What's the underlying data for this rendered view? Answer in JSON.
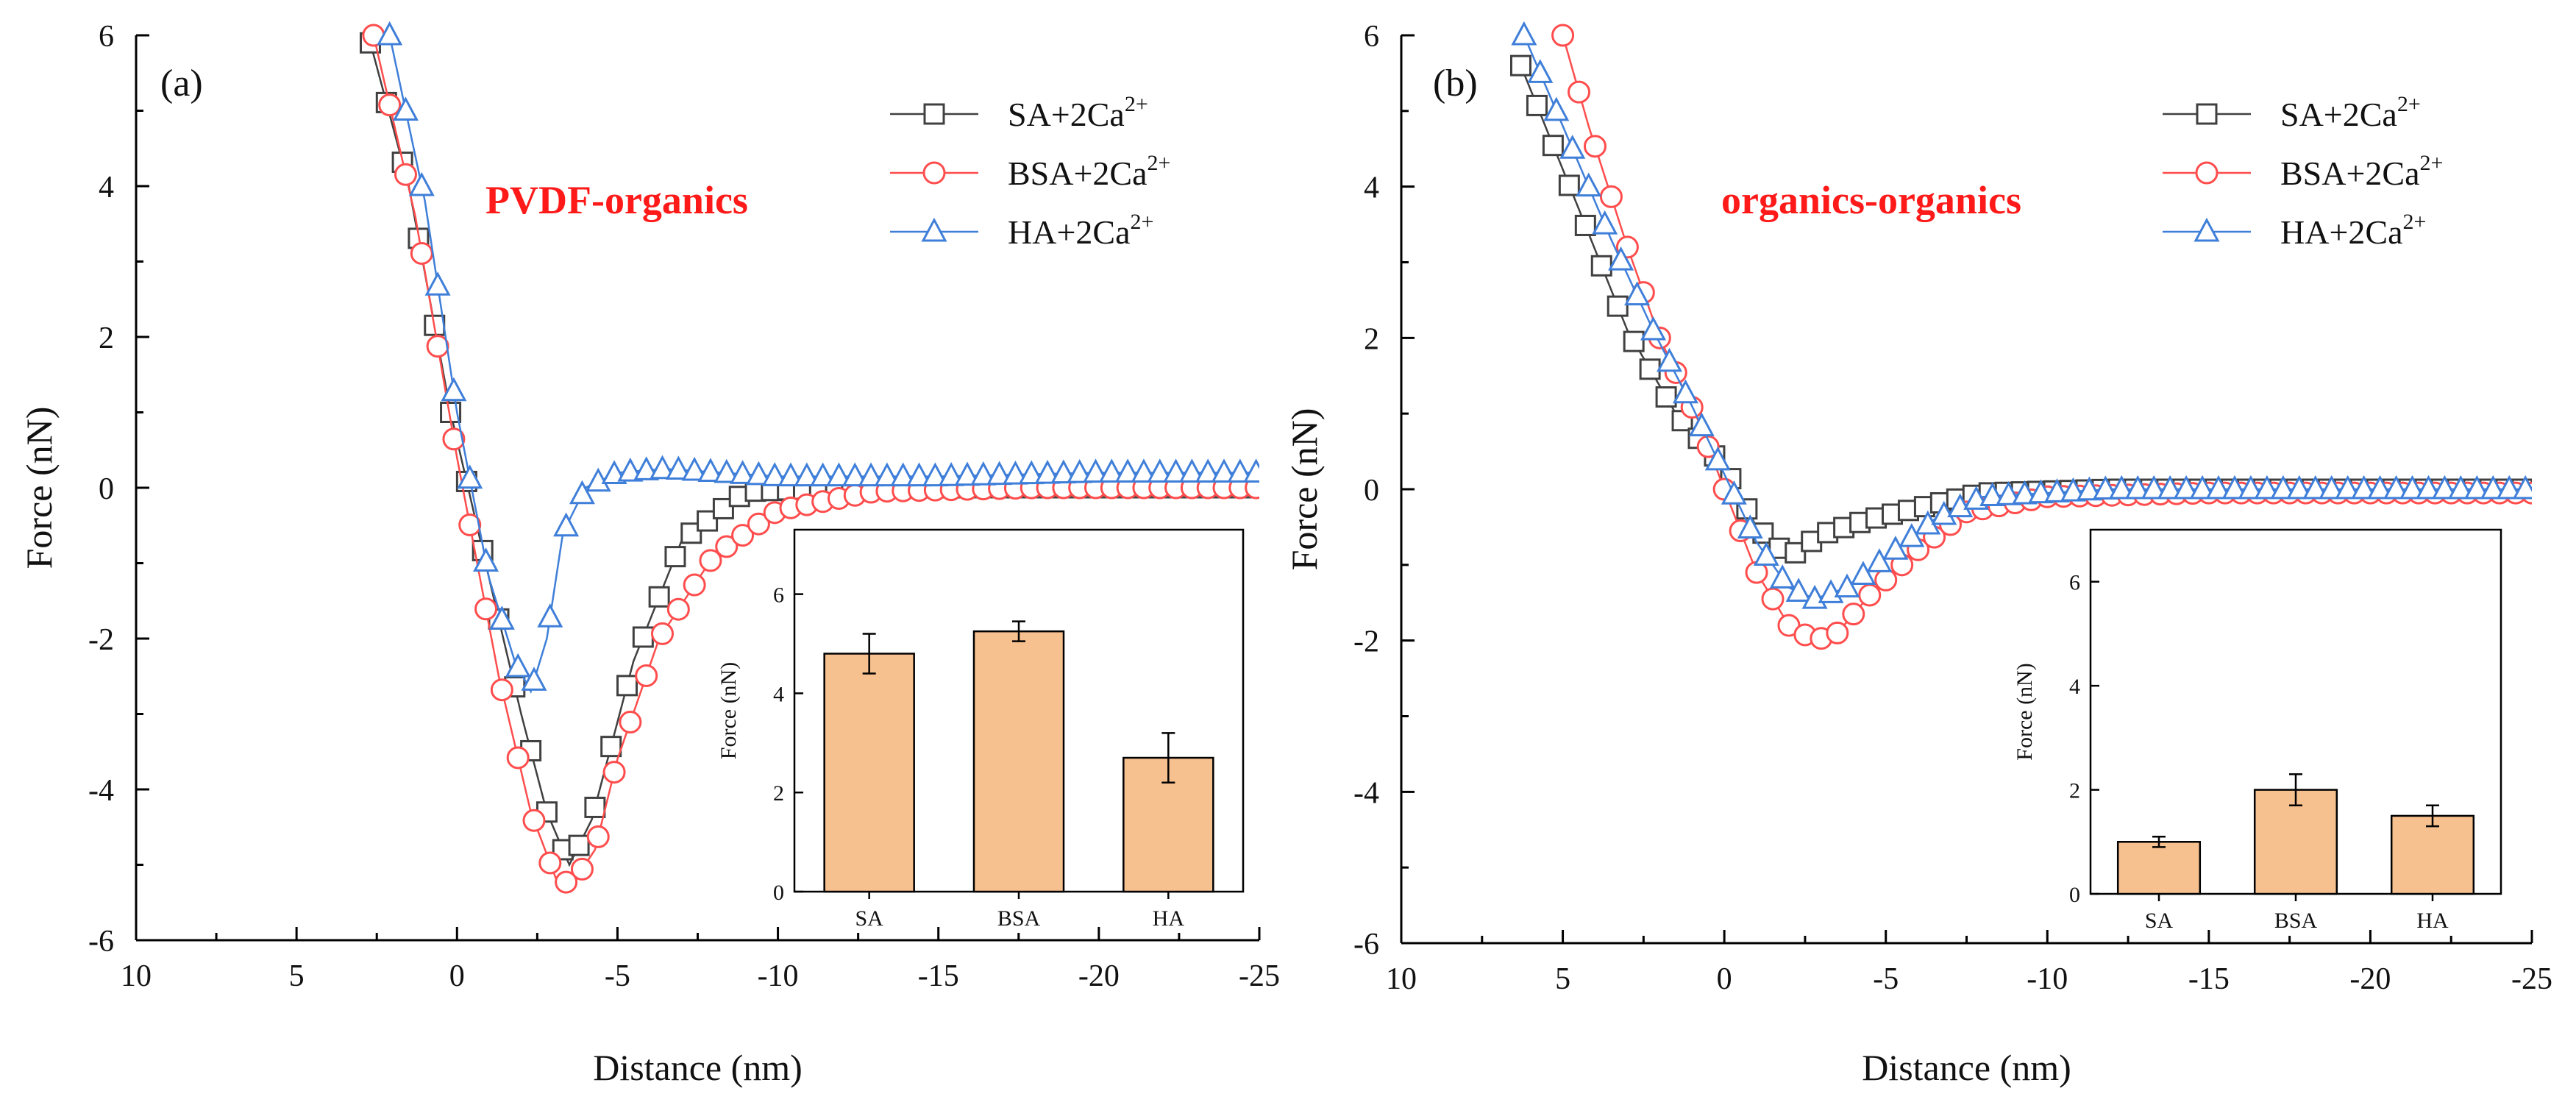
{
  "colors": {
    "SA": "#404040",
    "BSA": "#ff4d4d",
    "HA": "#3f7fd9",
    "bar_fill": "#f7c08f",
    "annotation": "#ff1a1a"
  },
  "chart_data": [
    {
      "type": "line",
      "panel_label": "(a)",
      "annotation": "PVDF-organics",
      "xlabel": "Distance (nm)",
      "ylabel": "Force (nN)",
      "xlim": [
        10,
        -25
      ],
      "ylim": [
        -6,
        6
      ],
      "xticks": [
        10,
        5,
        0,
        -5,
        -10,
        -15,
        -20,
        -25
      ],
      "xtick_labels": [
        "10",
        "5",
        "0",
        "-5",
        "-10",
        "-15",
        "-20",
        "-25"
      ],
      "yticks": [
        6,
        4,
        2,
        0,
        -2,
        -4,
        -6
      ],
      "ytick_labels": [
        "6",
        "4",
        "2",
        "0",
        "-2",
        "-4",
        "-6"
      ],
      "legend": {
        "position": "top-right",
        "entries": [
          {
            "base": "SA+2Ca",
            "sup": "2+"
          },
          {
            "base": "BSA+2Ca",
            "sup": "2+"
          },
          {
            "base": "HA+2Ca",
            "sup": "2+"
          }
        ]
      },
      "series": [
        {
          "name": "SA+2Ca2+",
          "marker": "square",
          "x": [
            2.7,
            1.5,
            0.2,
            -1.0,
            -2.0,
            -2.8,
            -3.5,
            -4.2,
            -5.5,
            -7.0,
            -9.0,
            -12.0,
            -18.0,
            -25.0
          ],
          "y": [
            5.9,
            4.0,
            1.0,
            -1.2,
            -3.0,
            -4.3,
            -5.0,
            -4.4,
            -2.3,
            -0.7,
            -0.05,
            0.0,
            0.0,
            0.0
          ]
        },
        {
          "name": "BSA+2Ca2+",
          "marker": "circle",
          "x": [
            2.6,
            1.3,
            0.0,
            -1.3,
            -2.3,
            -3.1,
            -3.6,
            -4.3,
            -5.0,
            -6.3,
            -8.0,
            -10.0,
            -13.0,
            -18.0,
            -25.0
          ],
          "y": [
            6.0,
            3.6,
            0.4,
            -2.5,
            -4.3,
            -5.2,
            -5.25,
            -4.8,
            -3.6,
            -2.0,
            -0.9,
            -0.3,
            -0.05,
            0.0,
            0.0
          ]
        },
        {
          "name": "HA+2Ca2+",
          "marker": "triangle",
          "x": [
            2.1,
            1.0,
            0.0,
            -1.0,
            -1.8,
            -2.3,
            -2.8,
            -3.3,
            -4.0,
            -5.0,
            -6.5,
            -10.0,
            -15.0,
            -20.0,
            -25.0
          ],
          "y": [
            6.0,
            3.8,
            1.0,
            -1.2,
            -2.3,
            -2.7,
            -2.0,
            -0.6,
            0.0,
            0.2,
            0.25,
            0.15,
            0.15,
            0.2,
            0.2
          ]
        }
      ],
      "inset": {
        "type": "bar",
        "categories": [
          "SA",
          "BSA",
          "HA"
        ],
        "values": [
          4.8,
          5.25,
          2.7
        ],
        "errors": [
          0.4,
          0.2,
          0.5
        ],
        "ylabel": "Force (nN)",
        "ylim": [
          0,
          7.3
        ],
        "yticks": [
          0,
          2,
          4,
          6
        ],
        "ytick_labels": [
          "0",
          "2",
          "4",
          "6"
        ]
      }
    },
    {
      "type": "line",
      "panel_label": "(b)",
      "annotation": "organics-organics",
      "xlabel": "Distance (nm)",
      "ylabel": "Force (nN)",
      "xlim": [
        10,
        -25
      ],
      "ylim": [
        -6,
        6
      ],
      "xticks": [
        10,
        5,
        0,
        -5,
        -10,
        -15,
        -20,
        -25
      ],
      "xtick_labels": [
        "10",
        "5",
        "0",
        "-5",
        "-10",
        "-15",
        "-20",
        "-25"
      ],
      "yticks": [
        6,
        4,
        2,
        0,
        -2,
        -4,
        -6
      ],
      "ytick_labels": [
        "6",
        "4",
        "2",
        "0",
        "-2",
        "-4",
        "-6"
      ],
      "legend": {
        "position": "top-right",
        "entries": [
          {
            "base": "SA+2Ca",
            "sup": "2+"
          },
          {
            "base": "BSA+2Ca",
            "sup": "2+"
          },
          {
            "base": "HA+2Ca",
            "sup": "2+"
          }
        ]
      },
      "series": [
        {
          "name": "SA+2Ca2+",
          "marker": "square",
          "x": [
            6.3,
            4.5,
            3.0,
            1.5,
            0.0,
            -1.0,
            -2.0,
            -3.0,
            -4.5,
            -6.0,
            -8.0,
            -12.0,
            -20.0,
            -25.0
          ],
          "y": [
            5.6,
            3.7,
            2.1,
            1.0,
            0.3,
            -0.5,
            -0.9,
            -0.6,
            -0.4,
            -0.25,
            -0.05,
            0.0,
            0.0,
            0.0
          ]
        },
        {
          "name": "BSA+2Ca2+",
          "marker": "circle",
          "x": [
            5.0,
            4.2,
            3.0,
            2.0,
            0.8,
            0.0,
            -1.0,
            -2.0,
            -2.8,
            -3.5,
            -4.5,
            -6.0,
            -7.5,
            -10.0,
            -15.0,
            -25.0
          ],
          "y": [
            6.0,
            4.8,
            3.2,
            2.0,
            0.9,
            0.0,
            -1.1,
            -1.8,
            -2.0,
            -1.9,
            -1.4,
            -0.8,
            -0.3,
            -0.1,
            -0.05,
            -0.05
          ]
        },
        {
          "name": "HA+2Ca2+",
          "marker": "triangle",
          "x": [
            6.2,
            4.8,
            3.5,
            2.2,
            1.0,
            0.0,
            -1.0,
            -2.0,
            -2.8,
            -3.8,
            -5.0,
            -6.5,
            -8.0,
            -12.0,
            -20.0,
            -25.0
          ],
          "y": [
            6.0,
            4.6,
            3.3,
            2.1,
            1.1,
            0.2,
            -0.7,
            -1.3,
            -1.45,
            -1.3,
            -0.9,
            -0.4,
            -0.1,
            0.0,
            0.0,
            0.0
          ]
        }
      ],
      "inset": {
        "type": "bar",
        "categories": [
          "SA",
          "BSA",
          "HA"
        ],
        "values": [
          1.0,
          2.0,
          1.5
        ],
        "errors": [
          0.1,
          0.3,
          0.2
        ],
        "ylabel": "Force (nN)",
        "ylim": [
          0,
          7.0
        ],
        "yticks": [
          0,
          2,
          4,
          6
        ],
        "ytick_labels": [
          "0",
          "2",
          "4",
          "6"
        ]
      }
    }
  ]
}
